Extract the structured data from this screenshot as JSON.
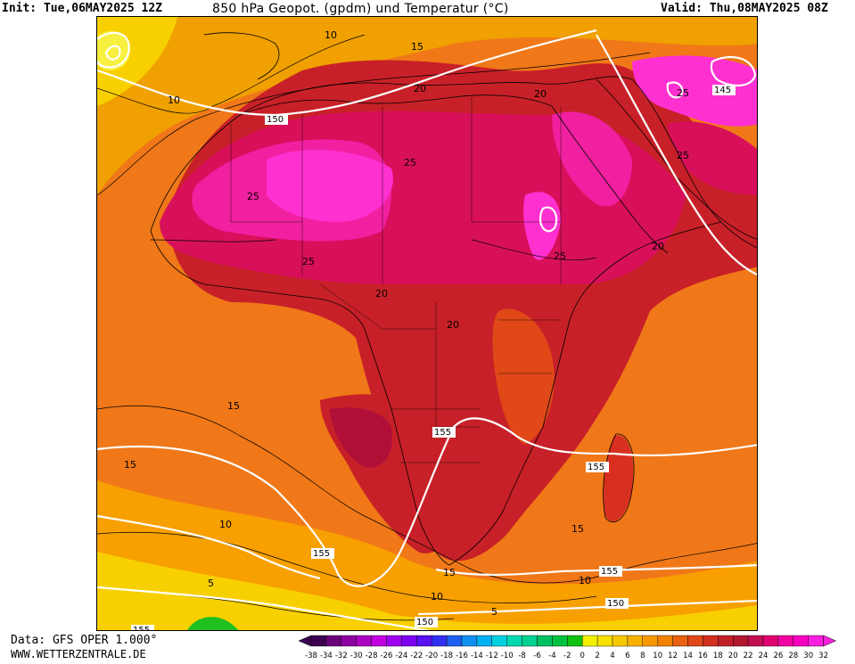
{
  "header": {
    "init": "Init: Tue,06MAY2025 12Z",
    "title": "850 hPa Geopot. (gpdm) und Temperatur (°C)",
    "valid": "Valid: Thu,08MAY2025 08Z"
  },
  "footer": {
    "data_source": "Data: GFS OPER 1.000°",
    "website": "WWW.WETTERZENTRALE.DE"
  },
  "legend": {
    "labels": [
      "-38",
      "-34",
      "-32",
      "-30",
      "-28",
      "-26",
      "-24",
      "-22",
      "-20",
      "-18",
      "-16",
      "-14",
      "-12",
      "-10",
      "-8",
      "-6",
      "-4",
      "-2",
      "0",
      "2",
      "4",
      "6",
      "8",
      "10",
      "12",
      "14",
      "16",
      "18",
      "20",
      "22",
      "24",
      "26",
      "28",
      "30",
      "32"
    ],
    "colors": [
      "#3c0050",
      "#6a0078",
      "#8c00a0",
      "#aa00c0",
      "#c000e0",
      "#a000f0",
      "#7a00f0",
      "#5a10f0",
      "#3030f0",
      "#2060f0",
      "#1090f0",
      "#00b0f0",
      "#00d0e0",
      "#00d8b0",
      "#00d090",
      "#00c060",
      "#00c040",
      "#10c010",
      "#f0f000",
      "#f8e000",
      "#f8c800",
      "#f8b000",
      "#f89800",
      "#f08000",
      "#e86010",
      "#e04818",
      "#d03020",
      "#c02028",
      "#b01830",
      "#c01050",
      "#e00070",
      "#f000a0",
      "#f800c0",
      "#f820e0"
    ]
  },
  "map": {
    "temperature_contour_labels": [
      "10",
      "15",
      "20",
      "25",
      "5"
    ],
    "geopotential_labels": [
      "145",
      "150",
      "155"
    ],
    "colors": {
      "ocean_cool": "#f8d000",
      "ocean_warm": "#f09000",
      "land_hot": "#c81830",
      "land_very_hot": "#e0007a",
      "land_extreme": "#ff20c8",
      "south_cool": "#f8e030",
      "green_patch": "#20c020"
    }
  }
}
